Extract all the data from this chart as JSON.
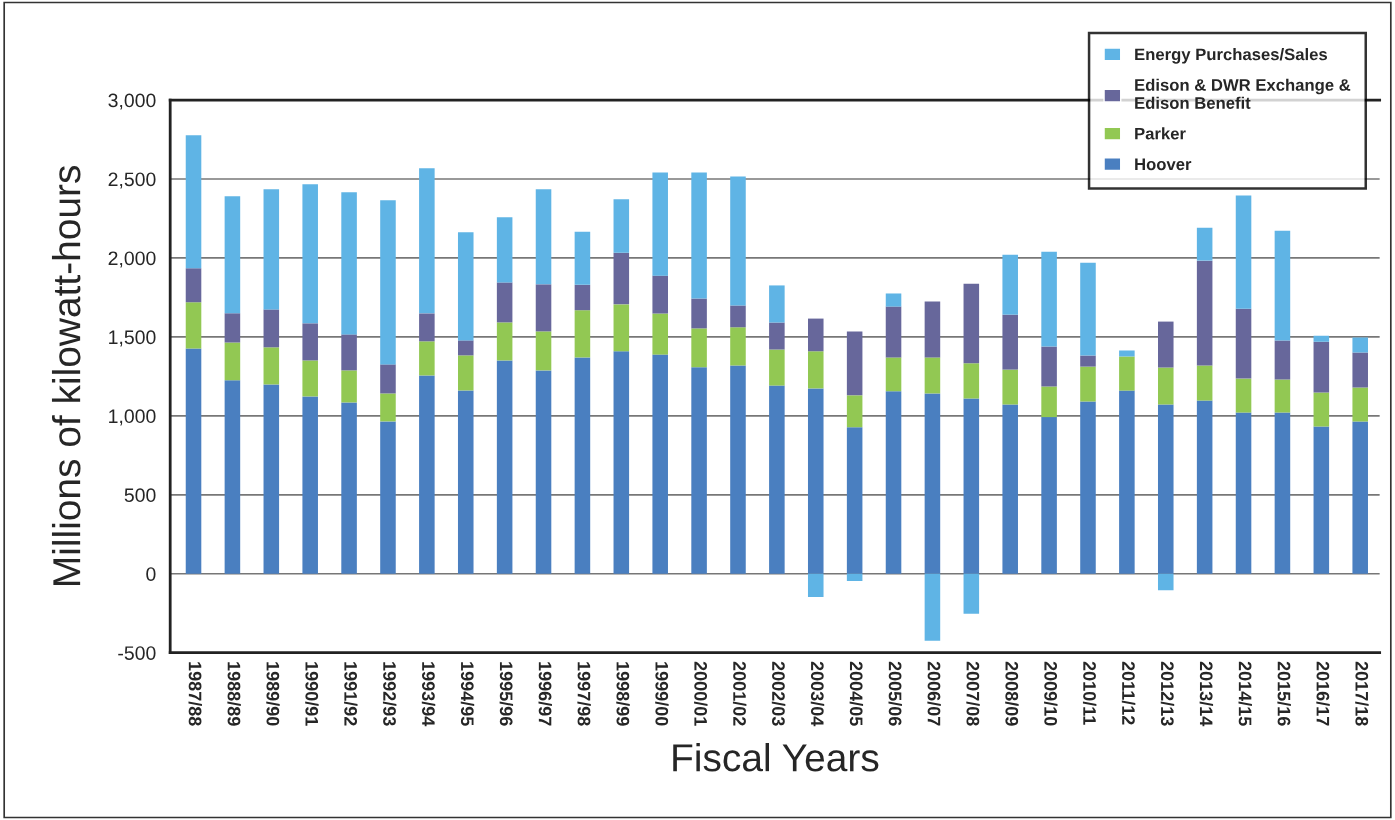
{
  "chart_data": {
    "type": "bar",
    "stacked": true,
    "xlabel": "Fiscal Years",
    "ylabel": "Millions of kilowatt-hours",
    "categories": [
      "1987/88",
      "1988/89",
      "1989/90",
      "1990/91",
      "1991/92",
      "1992/93",
      "1993/94",
      "1994/95",
      "1995/96",
      "1996/97",
      "1997/98",
      "1998/99",
      "1999/00",
      "2000/01",
      "2001/02",
      "2002/03",
      "2003/04",
      "2004/05",
      "2005/06",
      "2006/07",
      "2007/08",
      "2008/09",
      "2009/10",
      "2010/11",
      "2011/12",
      "2012/13",
      "2013/14",
      "2014/15",
      "2015/16",
      "2016/17",
      "2017/18"
    ],
    "series": [
      {
        "name": "Hoover",
        "color": "#4a7fc0",
        "values": [
          1427,
          1225,
          1199,
          1123,
          1085,
          965,
          1256,
          1161,
          1351,
          1288,
          1370,
          1409,
          1388,
          1308,
          1319,
          1192,
          1174,
          928,
          1156,
          1142,
          1110,
          1072,
          992,
          1091,
          1160,
          1072,
          1097,
          1021,
          1021,
          932,
          964
        ]
      },
      {
        "name": "Parker",
        "color": "#92c853",
        "values": [
          292,
          240,
          235,
          228,
          203,
          177,
          216,
          222,
          241,
          247,
          299,
          297,
          260,
          246,
          242,
          228,
          235,
          202,
          214,
          228,
          223,
          221,
          194,
          221,
          216,
          234,
          222,
          215,
          209,
          216,
          215
        ]
      },
      {
        "name": "Edison & DWR Exchange &\nEdison Benefit",
        "color": "#67679b",
        "values": [
          215,
          184,
          240,
          235,
          228,
          184,
          177,
          95,
          253,
          298,
          161,
          327,
          240,
          189,
          138,
          171,
          207,
          405,
          322,
          354,
          504,
          348,
          253,
          70,
          0,
          291,
          664,
          443,
          247,
          322,
          222
        ]
      },
      {
        "name": "Energy Purchases/Sales",
        "color": "#5fb4e5",
        "values": [
          843,
          741,
          761,
          880,
          900,
          1039,
          919,
          684,
          412,
          602,
          336,
          338,
          653,
          798,
          817,
          235,
          -147,
          -46,
          83,
          -424,
          -253,
          380,
          601,
          588,
          38,
          -105,
          209,
          716,
          696,
          38,
          95
        ]
      }
    ],
    "ylim": [
      -500,
      3000
    ],
    "yticks": [
      {
        "value": -500,
        "label": "-500"
      },
      0,
      500,
      {
        "value": 1000,
        "label": "1,000"
      },
      {
        "value": 1500,
        "label": "1,500"
      },
      {
        "value": 2000,
        "label": "2,000"
      },
      {
        "value": 2500,
        "label": "2,500"
      },
      {
        "value": 3000,
        "label": "3,000"
      }
    ],
    "grid": "y",
    "legend": "top right"
  }
}
